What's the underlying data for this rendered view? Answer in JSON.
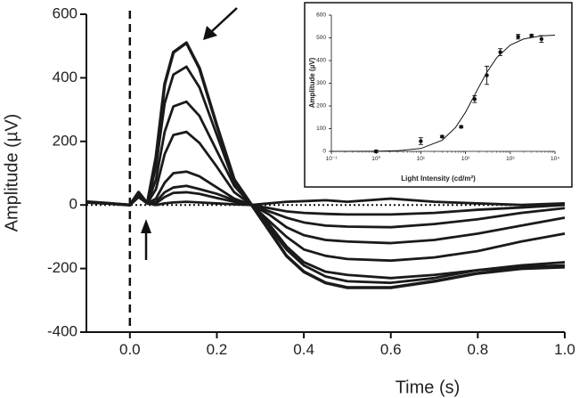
{
  "chart_data": [
    {
      "type": "line",
      "xlabel": "Time (s)",
      "ylabel": "Amplitude (µV)",
      "xlim": [
        -0.1,
        1.0
      ],
      "ylim": [
        -400,
        600
      ],
      "xticks": [
        {
          "value": 0,
          "label": "0.0"
        },
        0.2,
        0.4,
        0.6,
        0.8,
        {
          "value": 1,
          "label": "1.0"
        }
      ],
      "yticks": [
        -400,
        -200,
        0,
        200,
        400,
        600
      ],
      "x": [
        -0.1,
        -0.05,
        0,
        0.02,
        0.04,
        0.06,
        0.08,
        0.1,
        0.13,
        0.16,
        0.2,
        0.24,
        0.28,
        0.32,
        0.36,
        0.4,
        0.45,
        0.5,
        0.6,
        0.7,
        0.8,
        0.9,
        1.0
      ],
      "series": [
        {
          "color": "#1a1a1a",
          "values": [
            10,
            5,
            0,
            40,
            5,
            150,
            380,
            480,
            510,
            430,
            250,
            80,
            0,
            -80,
            -160,
            -210,
            -245,
            -260,
            -260,
            -240,
            -215,
            -200,
            -195
          ]
        },
        {
          "color": "#1a1a1a",
          "values": [
            8,
            5,
            0,
            35,
            5,
            120,
            320,
            410,
            435,
            370,
            220,
            70,
            0,
            -70,
            -140,
            -190,
            -225,
            -240,
            -245,
            -230,
            -205,
            -190,
            -180
          ]
        },
        {
          "color": "#1a1a1a",
          "values": [
            8,
            5,
            0,
            30,
            5,
            80,
            230,
            310,
            325,
            280,
            170,
            60,
            0,
            -60,
            -130,
            -180,
            -210,
            -220,
            -230,
            -220,
            -205,
            -195,
            -190
          ]
        },
        {
          "color": "#1a1a1a",
          "values": [
            8,
            5,
            0,
            30,
            5,
            50,
            160,
            220,
            230,
            195,
            120,
            40,
            0,
            -50,
            -100,
            -140,
            -160,
            -170,
            -175,
            -165,
            -145,
            -115,
            -90
          ]
        },
        {
          "color": "#1a1a1a",
          "values": [
            8,
            5,
            0,
            25,
            5,
            20,
            70,
            100,
            105,
            90,
            55,
            20,
            0,
            -30,
            -70,
            -95,
            -110,
            -115,
            -120,
            -110,
            -90,
            -65,
            -40
          ]
        },
        {
          "color": "#1a1a1a",
          "values": [
            8,
            5,
            0,
            25,
            5,
            10,
            40,
            55,
            60,
            50,
            35,
            15,
            0,
            -20,
            -40,
            -55,
            -65,
            -68,
            -70,
            -60,
            -45,
            -25,
            -10
          ]
        },
        {
          "color": "#1a1a1a",
          "values": [
            8,
            5,
            0,
            25,
            5,
            5,
            25,
            38,
            40,
            35,
            22,
            10,
            0,
            -10,
            -20,
            -25,
            -28,
            -30,
            -30,
            -25,
            -15,
            -8,
            0
          ]
        },
        {
          "color": "#1a1a1a",
          "values": [
            8,
            5,
            0,
            25,
            5,
            0,
            5,
            8,
            10,
            8,
            5,
            2,
            0,
            5,
            10,
            12,
            15,
            10,
            20,
            10,
            5,
            0,
            5
          ]
        }
      ]
    },
    {
      "type": "scatter",
      "log_x": true,
      "xlabel": "Light Intensity (cd/m²)",
      "ylabel": "Amplitude (µV)",
      "xlim": [
        0.1,
        10000
      ],
      "ylim": [
        0,
        600
      ],
      "xticks": [
        {
          "value": 0.1,
          "label": "10⁻¹"
        },
        {
          "value": 1,
          "label": "10⁰"
        },
        {
          "value": 10,
          "label": "10¹"
        },
        {
          "value": 100,
          "label": "10²"
        },
        {
          "value": 1000,
          "label": "10³"
        },
        {
          "value": 10000,
          "label": "10⁴"
        }
      ],
      "yticks": [
        0,
        100,
        200,
        300,
        400,
        500,
        600
      ],
      "color": "#111111",
      "x": [
        1,
        10,
        30,
        80,
        160,
        300,
        600,
        1500,
        3000,
        5000
      ],
      "values": [
        0,
        45,
        65,
        108,
        230,
        335,
        437,
        505,
        510,
        495
      ],
      "errors": [
        5,
        15,
        5,
        5,
        15,
        40,
        15,
        10,
        5,
        15
      ],
      "fit": {
        "x": [
          0.1,
          1,
          3,
          10,
          30,
          60,
          100,
          200,
          300,
          500,
          1000,
          2000,
          5000,
          10000
        ],
        "values": [
          0,
          0.6,
          2.7,
          12.6,
          48.9,
          105.6,
          172,
          284.5,
          348,
          413,
          468,
          495,
          509,
          512
        ]
      }
    }
  ]
}
